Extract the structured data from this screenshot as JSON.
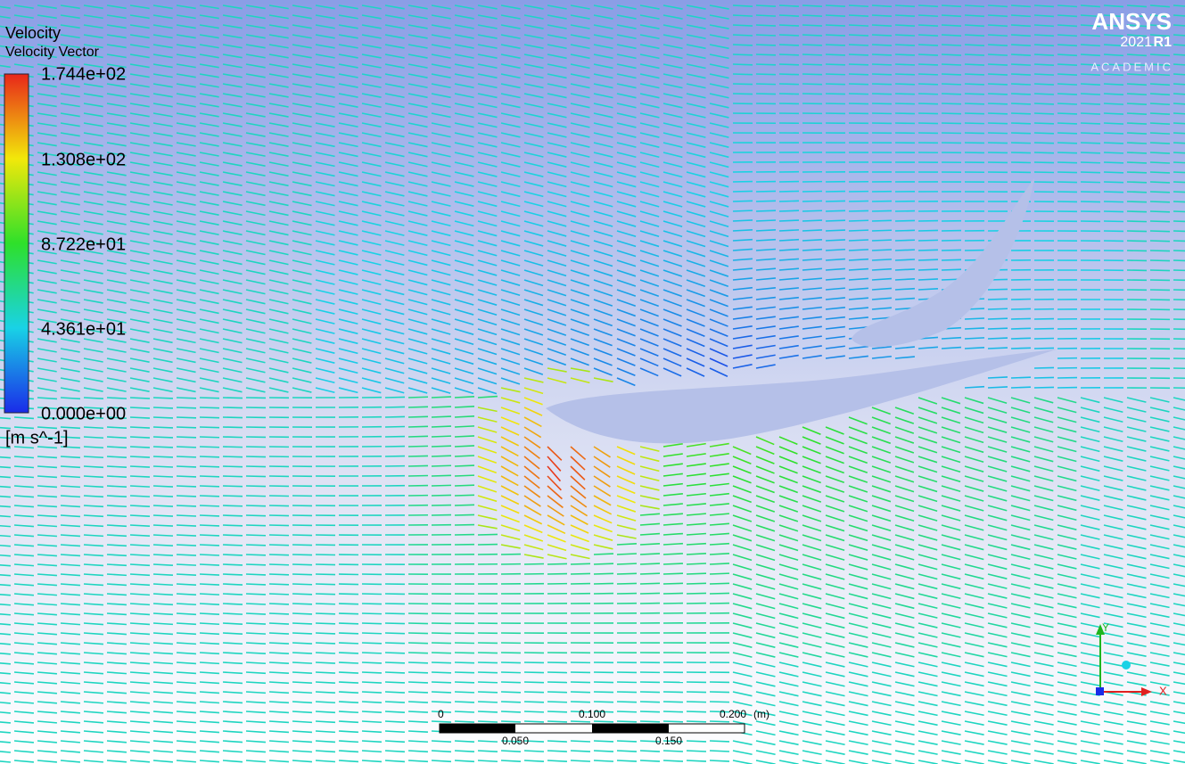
{
  "legend": {
    "title": "Velocity",
    "subtitle": "Velocity Vector",
    "tick_labels": [
      "1.744e+02",
      "1.308e+02",
      "8.722e+01",
      "4.361e+01",
      "0.000e+00"
    ],
    "units": "[m s^-1]"
  },
  "logo": {
    "brand": "ANSYS",
    "version": "2021",
    "release": "R1",
    "edition": "ACADEMIC"
  },
  "scale_bar": {
    "top_labels": [
      "0",
      "0.100",
      "0.200"
    ],
    "unit": "(m)",
    "bottom_labels": [
      "0.050",
      "0.150"
    ]
  },
  "axes": {
    "y": "Y",
    "x": "X"
  }
}
